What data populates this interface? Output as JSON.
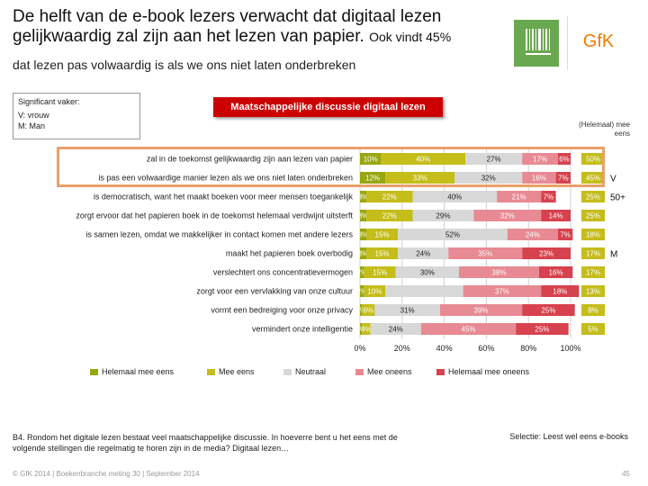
{
  "slide": {
    "title_main": "De helft van de e-book lezers verwacht dat digitaal lezen gelijkwaardig zal zijn aan het lezen van papier.",
    "title_tail": "Ook vindt 45%",
    "subtitle": "dat lezen pas volwaardig is als we ons niet laten onderbreken",
    "significance": {
      "header": "Significant vaker:",
      "lines": [
        "V: vrouw",
        "M: Man"
      ]
    },
    "topic": "Maatschappelijke discussie digitaal lezen",
    "eens_header": "(Helemaal) mee eens",
    "footer_question": "B4. Rondom het digitale lezen bestaat veel maatschappelijke discussie. In hoeverre bent u het eens met de volgende stellingen die regelmatig te horen zijn in de media? Digitaal lezen…",
    "footer_selection": "Selectie: Leest wel eens e-books",
    "footer_copyright": "© GfK 2014 | Boekenbranche meting 30 | September 2014",
    "page_number": "45",
    "brand_logo_text": "GfK",
    "colors": {
      "accent_red": "#cc0000",
      "highlight_orange": "#e9a06a",
      "logo_green": "#6aa84f"
    }
  },
  "chart_data": {
    "type": "bar",
    "orientation": "horizontal-stacked-100",
    "categories": [
      "zal in de toekomst gelijkwaardig zijn aan lezen van papier",
      "is pas een volwaardige manier lezen als we ons niet laten onderbreken",
      "is democratisch, want het maakt boeken voor meer mensen toegankelijk",
      "zorgt ervoor dat het papieren boek in de toekomst helemaal verdwijnt uitsterft",
      "is samen lezen, omdat we makkelijker in contact komen met andere lezers",
      "maakt het papieren boek overbodig",
      "verslechtert ons concentratievermogen",
      "zorgt voor een vervlakking van onze cultuur",
      "vormt een bedreiging voor onze privacy",
      "vermindert onze intelligentie"
    ],
    "series": [
      {
        "name": "Helemaal mee eens",
        "color": "#98a611",
        "values": [
          10,
          12,
          3,
          3,
          3,
          3,
          2,
          2,
          1,
          1
        ]
      },
      {
        "name": "Mee eens",
        "color": "#c4bd1a",
        "values": [
          40,
          33,
          22,
          22,
          15,
          15,
          15,
          10,
          6,
          4
        ]
      },
      {
        "name": "Neutraal",
        "color": "#d8d8d8",
        "values": [
          27,
          32,
          40,
          29,
          52,
          24,
          30,
          37,
          31,
          24
        ]
      },
      {
        "name": "Mee oneens",
        "color": "#e78a93",
        "values": [
          17,
          16,
          21,
          32,
          24,
          35,
          38,
          37,
          39,
          45
        ]
      },
      {
        "name": "Helemaal mee oneens",
        "color": "#d6424d",
        "values": [
          6,
          7,
          7,
          14,
          7,
          23,
          16,
          18,
          25,
          25
        ]
      }
    ],
    "labels": [
      [
        "10%",
        "40%",
        "27%",
        "17%",
        "6%"
      ],
      [
        "12%",
        "33%",
        "32%",
        "16%",
        "7%"
      ],
      [
        "3%",
        "22%",
        "40%",
        "21%",
        "7%"
      ],
      [
        "3%",
        "22%",
        "29%",
        "32%",
        "14%"
      ],
      [
        "3%",
        "15%",
        "52%",
        "24%",
        "7%"
      ],
      [
        "3%",
        "15%",
        "24%",
        "35%",
        "23%"
      ],
      [
        "2%",
        "15%",
        "30%",
        "38%",
        "16%"
      ],
      [
        "2%",
        "10%",
        "",
        "37%",
        "18%"
      ],
      [
        "1%",
        "6%",
        "31%",
        "39%",
        "25%"
      ],
      [
        "1%",
        "4%",
        "24%",
        "45%",
        "25%"
      ]
    ],
    "eens_totals": [
      "50%",
      "45%",
      "25%",
      "25%",
      "18%",
      "17%",
      "17%",
      "13%",
      "8%",
      "5%"
    ],
    "significance_marks": [
      "",
      "V",
      "50+",
      "",
      "",
      "M",
      "",
      "",
      "",
      ""
    ],
    "highlighted_rows": [
      0,
      1
    ],
    "x_ticks": [
      "0%",
      "20%",
      "40%",
      "60%",
      "80%",
      "100%"
    ],
    "xlim": [
      0,
      100
    ],
    "grid": true,
    "legend_position": "bottom"
  }
}
